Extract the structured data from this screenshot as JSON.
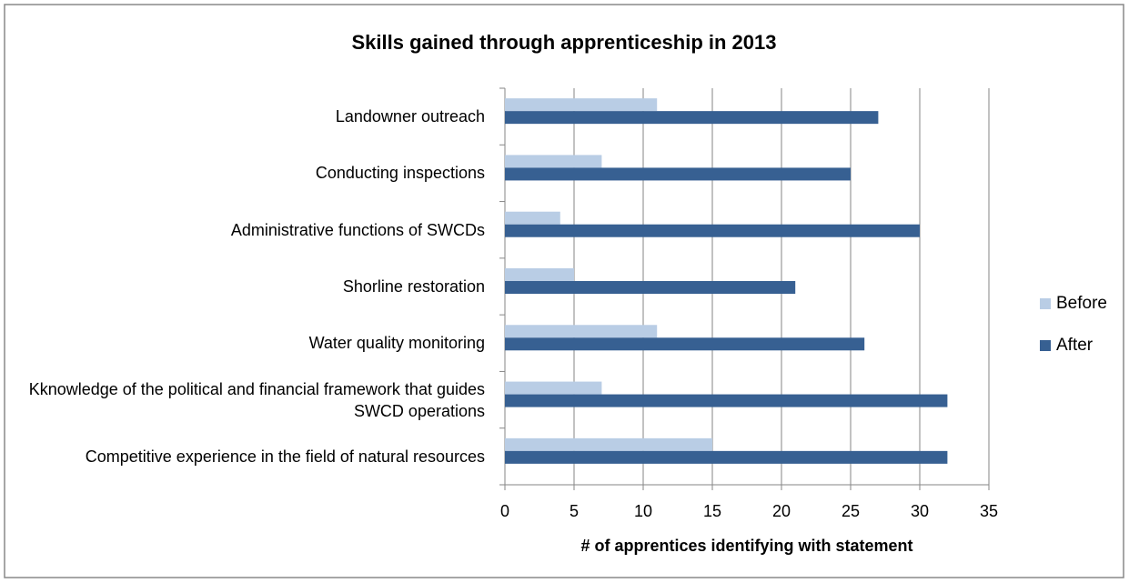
{
  "chart_data": {
    "type": "barh",
    "title": "Skills gained through apprenticeship in 2013",
    "xlabel": "# of apprentices identifying with statement",
    "categories": [
      "Landowner outreach",
      "Conducting inspections",
      "Administrative functions of SWCDs",
      "Shorline restoration",
      "Water quality monitoring",
      "Kknowledge of the political and financial framework that guides SWCD operations",
      "Competitive experience in the field of natural resources"
    ],
    "series": [
      {
        "name": "Before",
        "color": "#b9cde5",
        "values": [
          11,
          7,
          4,
          5,
          11,
          7,
          15
        ]
      },
      {
        "name": "After",
        "color": "#376092",
        "values": [
          27,
          25,
          30,
          21,
          26,
          32,
          32
        ]
      }
    ],
    "xlim": [
      0,
      35
    ],
    "xticks": [
      0,
      5,
      10,
      15,
      20,
      25,
      30,
      35
    ],
    "grid": true,
    "legend": "right"
  }
}
